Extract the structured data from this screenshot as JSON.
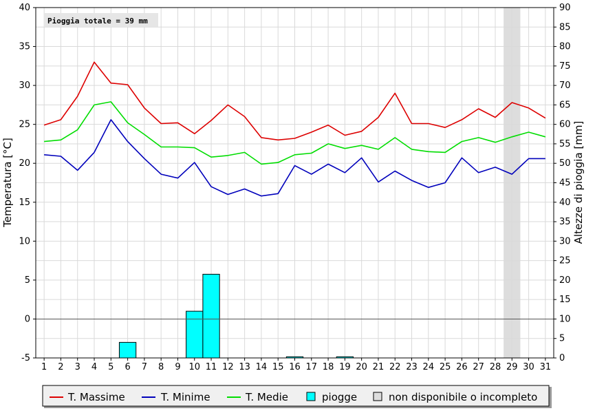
{
  "annotation": "Pioggia totale = 39 mm",
  "chart_data": {
    "type": "line",
    "x": [
      1,
      2,
      3,
      4,
      5,
      6,
      7,
      8,
      9,
      10,
      11,
      12,
      13,
      14,
      15,
      16,
      17,
      18,
      19,
      20,
      21,
      22,
      23,
      24,
      25,
      26,
      27,
      28,
      29,
      30,
      31
    ],
    "ylabel": "Temperatura [°C]",
    "y2label": "Altezze di pioggia [mm]",
    "ylim": [
      -5,
      40
    ],
    "y2lim": [
      0,
      90
    ],
    "yticks": [
      -5,
      0,
      5,
      10,
      15,
      20,
      25,
      30,
      35,
      40
    ],
    "y2ticks": [
      0,
      5,
      10,
      15,
      20,
      25,
      30,
      35,
      40,
      45,
      50,
      55,
      60,
      65,
      70,
      75,
      80,
      85,
      90
    ],
    "grid": true,
    "legend_position": "bottom",
    "series": [
      {
        "name": "T. Massime",
        "color": "#dd0000",
        "values": [
          24.9,
          25.6,
          28.6,
          33.0,
          30.3,
          30.1,
          27.1,
          25.1,
          25.2,
          23.8,
          25.5,
          27.5,
          26.0,
          23.3,
          23.0,
          23.2,
          24.0,
          24.9,
          23.6,
          24.1,
          25.9,
          29.0,
          25.1,
          25.1,
          24.6,
          25.6,
          27.0,
          25.9,
          27.8,
          27.1,
          25.8
        ]
      },
      {
        "name": "T. Minime",
        "color": "#0000bb",
        "values": [
          21.1,
          20.9,
          19.1,
          21.4,
          25.6,
          22.8,
          20.6,
          18.6,
          18.1,
          20.1,
          17.0,
          16.0,
          16.7,
          15.8,
          16.1,
          19.7,
          18.6,
          19.9,
          18.8,
          20.7,
          17.6,
          19.0,
          17.8,
          16.9,
          17.5,
          20.7,
          18.8,
          19.5,
          18.6,
          20.6,
          20.6
        ]
      },
      {
        "name": "T. Medie",
        "color": "#00dd00",
        "values": [
          22.8,
          23.0,
          24.3,
          27.5,
          27.9,
          25.2,
          23.7,
          22.1,
          22.1,
          22.0,
          20.8,
          21.0,
          21.4,
          19.9,
          20.1,
          21.1,
          21.3,
          22.5,
          21.9,
          22.3,
          21.8,
          23.3,
          21.8,
          21.5,
          21.4,
          22.8,
          23.3,
          22.7,
          23.4,
          24.0,
          23.4
        ]
      }
    ],
    "rain": {
      "name": "piogge",
      "color": "#00ffff",
      "values": [
        0,
        0,
        0,
        0,
        0,
        4,
        0,
        0,
        0,
        12,
        21.5,
        0,
        0,
        0,
        0,
        0.3,
        0,
        0,
        0.3,
        0,
        0,
        0,
        0,
        0,
        0,
        0,
        0,
        0,
        0,
        0,
        0
      ]
    },
    "missing": {
      "name": "non disponibile o incompleto",
      "color": "#dddddd",
      "days": [
        29
      ]
    }
  }
}
